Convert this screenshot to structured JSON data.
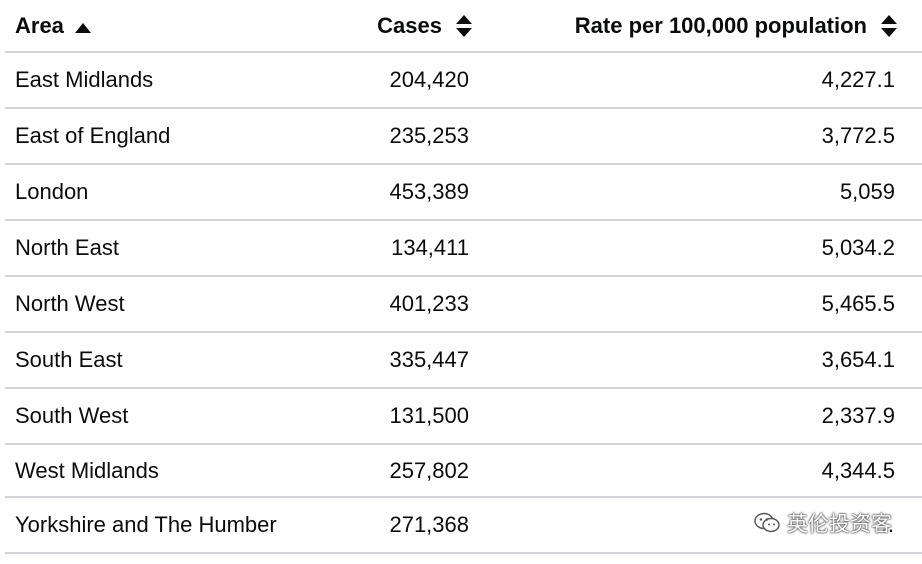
{
  "table": {
    "headers": {
      "area": "Area",
      "cases": "Cases",
      "rate": "Rate per 100,000 population"
    },
    "rows": [
      {
        "area": "East Midlands",
        "cases": "204,420",
        "rate": "4,227.1"
      },
      {
        "area": "East of England",
        "cases": "235,253",
        "rate": "3,772.5"
      },
      {
        "area": "London",
        "cases": "453,389",
        "rate": "5,059"
      },
      {
        "area": "North East",
        "cases": "134,411",
        "rate": "5,034.2"
      },
      {
        "area": "North West",
        "cases": "401,233",
        "rate": "5,465.5"
      },
      {
        "area": "South East",
        "cases": "335,447",
        "rate": "3,654.1"
      },
      {
        "area": "South West",
        "cases": "131,500",
        "rate": "2,337.9"
      },
      {
        "area": "West Midlands",
        "cases": "257,802",
        "rate": "4,344.5"
      },
      {
        "area": "Yorkshire and The Humber",
        "cases": "271,368",
        "rate": "…"
      }
    ]
  },
  "watermark": {
    "text": "英伦投资客",
    "icon": "wechat-icon"
  },
  "icons": {
    "sort_asc": "sort-ascending-icon",
    "sort_both": "sort-both-icon"
  },
  "colors": {
    "text": "#0b0c0c",
    "divider": "#d1d4d6"
  }
}
